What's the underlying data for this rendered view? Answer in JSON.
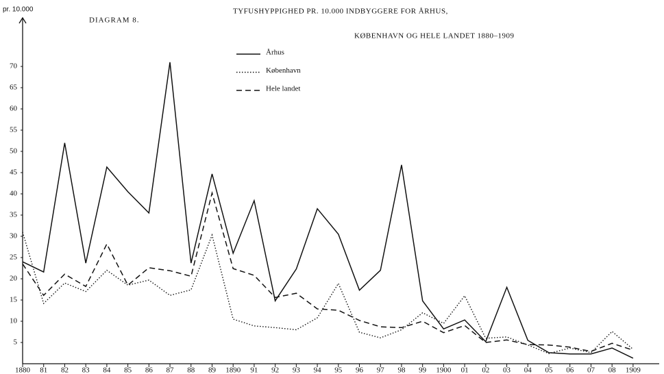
{
  "chart_data": {
    "type": "line",
    "label": "DIAGRAM 8.",
    "title": "TYFUSHYPPIGHED PR. 10.000 INDBYGGERE FOR ÅRHUS,",
    "subtitle": "KØBENHAVN OG HELE LANDET 1880–1909",
    "y_label": "pr. 10.000",
    "categories": [
      "1880",
      "81",
      "82",
      "83",
      "84",
      "85",
      "86",
      "87",
      "88",
      "89",
      "1890",
      "91",
      "92",
      "93",
      "94",
      "95",
      "96",
      "97",
      "98",
      "99",
      "1900",
      "01",
      "02",
      "03",
      "04",
      "05",
      "06",
      "07",
      "08",
      "1909"
    ],
    "ylim": [
      0,
      80
    ],
    "yticks": [
      5,
      10,
      15,
      20,
      25,
      30,
      35,
      40,
      45,
      50,
      55,
      60,
      65,
      70
    ],
    "legend": "upper-center",
    "series": [
      {
        "name": "Århus",
        "color": "#111111",
        "style": "solid",
        "values": [
          24,
          21.6,
          52,
          23.7,
          46.3,
          40.5,
          35.5,
          71,
          23.7,
          44.7,
          26,
          38.4,
          14.8,
          22.3,
          36.5,
          30.5,
          17.3,
          22,
          46.8,
          14.8,
          8.2,
          10.3,
          5.2,
          18,
          5.5,
          2.6,
          2.3,
          2.3,
          3.7,
          1.3
        ]
      },
      {
        "name": "København",
        "color": "#111111",
        "style": "dotted",
        "values": [
          31,
          14.2,
          19,
          17,
          22,
          18.5,
          19.7,
          16.1,
          17.4,
          30.3,
          10.5,
          8.9,
          8.5,
          8,
          10.8,
          18.9,
          7.4,
          6.1,
          8,
          12,
          9.5,
          16,
          6,
          6.3,
          4.4,
          2.4,
          3.7,
          2.6,
          7.6,
          3.4
        ]
      },
      {
        "name": "Hele landet",
        "color": "#111111",
        "style": "dashed",
        "values": [
          23.5,
          16.1,
          21.1,
          18.2,
          28.2,
          18.5,
          22.6,
          21.9,
          20.6,
          40.2,
          22.4,
          20.8,
          15.6,
          16.6,
          12.9,
          12.6,
          10.2,
          8.7,
          8.5,
          10,
          7.3,
          9,
          5,
          5.6,
          4.5,
          4.4,
          3.9,
          2.9,
          4.8,
          3.2
        ]
      }
    ]
  }
}
